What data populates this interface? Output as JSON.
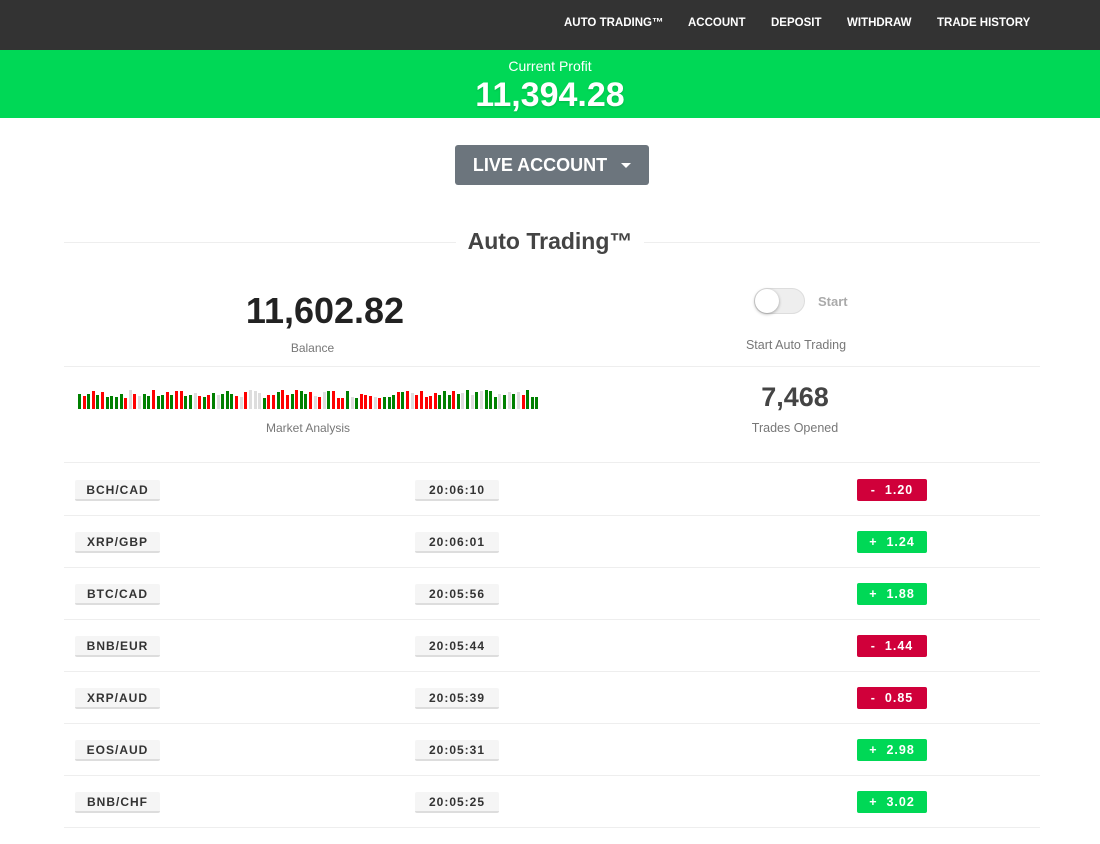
{
  "nav": {
    "items": [
      "AUTO TRADING™",
      "ACCOUNT",
      "DEPOSIT",
      "WITHDRAW",
      "TRADE HISTORY"
    ]
  },
  "profit": {
    "label": "Current Profit",
    "value": "11,394.28"
  },
  "account_button": "LIVE ACCOUNT",
  "title": "Auto Trading™",
  "balance": {
    "value": "11,602.82",
    "label": "Balance"
  },
  "toggle": {
    "label": "Start",
    "caption": "Start Auto Trading",
    "on": false
  },
  "market": {
    "label": "Market Analysis"
  },
  "trades": {
    "value": "7,468",
    "label": "Trades Opened"
  },
  "colors": {
    "green": "#00d856",
    "red": "#d0003a",
    "nav": "#333333"
  },
  "rows": [
    {
      "pair": "BCH/CAD",
      "time": "20:06:10",
      "amount": "-  1.20",
      "dir": "down"
    },
    {
      "pair": "XRP/GBP",
      "time": "20:06:01",
      "amount": "+  1.24",
      "dir": "up"
    },
    {
      "pair": "BTC/CAD",
      "time": "20:05:56",
      "amount": "+  1.88",
      "dir": "up"
    },
    {
      "pair": "BNB/EUR",
      "time": "20:05:44",
      "amount": "-  1.44",
      "dir": "down"
    },
    {
      "pair": "XRP/AUD",
      "time": "20:05:39",
      "amount": "-  0.85",
      "dir": "down"
    },
    {
      "pair": "EOS/AUD",
      "time": "20:05:31",
      "amount": "+  2.98",
      "dir": "up"
    },
    {
      "pair": "BNB/CHF",
      "time": "20:05:25",
      "amount": "+  3.02",
      "dir": "up"
    }
  ]
}
